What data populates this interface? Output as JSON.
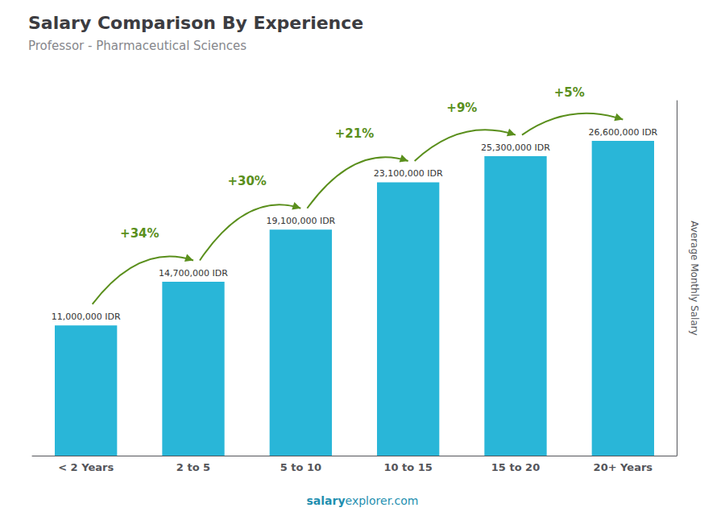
{
  "chart_data": {
    "type": "bar",
    "title": "Salary Comparison By Experience",
    "subtitle": "Professor - Pharmaceutical Sciences",
    "categories": [
      "< 2 Years",
      "2 to 5",
      "5 to 10",
      "10 to 15",
      "15 to 20",
      "20+ Years"
    ],
    "values": [
      11000000,
      14700000,
      19100000,
      23100000,
      25300000,
      26600000
    ],
    "value_labels": [
      "11,000,000 IDR",
      "14,700,000 IDR",
      "19,100,000 IDR",
      "23,100,000 IDR",
      "25,300,000 IDR",
      "26,600,000 IDR"
    ],
    "data_labels": true,
    "annotations": [
      "+34%",
      "+30%",
      "+21%",
      "+9%",
      "+5%"
    ],
    "ylabel": "Average Monthly Salary",
    "footer": [
      "salary",
      "explorer.com"
    ],
    "color": "#29b6d8",
    "ylim": [
      0,
      30000000
    ],
    "tick_labels": "x",
    "grid": false
  }
}
